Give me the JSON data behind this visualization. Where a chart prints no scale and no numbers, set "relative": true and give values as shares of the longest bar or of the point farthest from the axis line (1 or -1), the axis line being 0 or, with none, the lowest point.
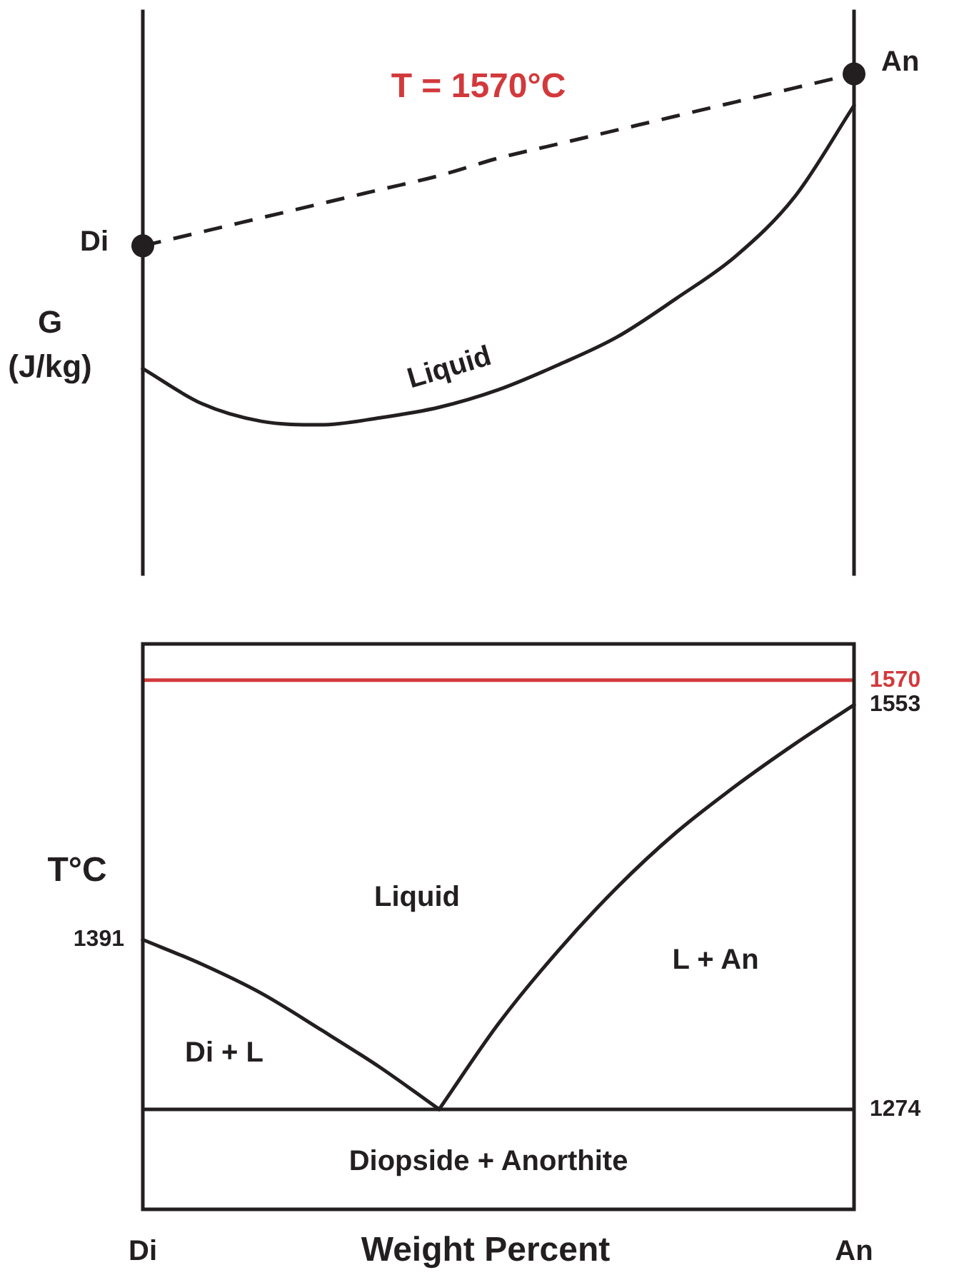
{
  "chart_data": [
    {
      "type": "line",
      "title": "T = 1570°C",
      "ylabel": "G (J/kg)",
      "relative": true,
      "tick_labels": false,
      "categories": [
        "Di",
        null,
        null,
        null,
        null,
        null,
        null,
        null,
        null,
        null,
        null,
        null,
        "An"
      ],
      "series": [
        {
          "name": "Liquid",
          "color": "#231f20",
          "values": [
            0.16,
            0.06,
            0.01,
            0,
            0.02,
            0.05,
            0.1,
            0.17,
            0.25,
            0.36,
            0.48,
            0.65,
            0.91
          ]
        },
        {
          "color": "#231f20",
          "line_style": "dashed",
          "values": [
            0.51,
            0.55,
            0.59,
            0.63,
            0.67,
            0.71,
            0.76,
            0.8,
            0.84,
            0.88,
            0.92,
            0.96,
            1
          ]
        },
        {
          "type": "scatter",
          "color": "#231f20",
          "marker": "circle",
          "values": [
            0.51,
            null,
            null,
            null,
            null,
            null,
            null,
            null,
            null,
            null,
            null,
            null,
            1
          ]
        }
      ],
      "annotations": [
        "Di",
        "An"
      ]
    },
    {
      "type": "line",
      "xlabel": "Weight Percent",
      "ylabel": "T°C",
      "categories": [
        "Di",
        null,
        null,
        null,
        null,
        null,
        null,
        null,
        null,
        null,
        null,
        null,
        "An"
      ],
      "ylim": [
        1205,
        1595
      ],
      "yticks": [
        1274,
        1553
      ],
      "series": [
        {
          "color": "#231f20",
          "values": [
            1391,
            1374,
            1354,
            1329,
            1303,
            1274,
            null,
            null,
            null,
            null,
            null,
            null,
            null
          ]
        },
        {
          "color": "#231f20",
          "values": [
            null,
            null,
            null,
            null,
            null,
            1274,
            1333,
            1383,
            1427,
            1465,
            1497,
            1526,
            1553
          ]
        }
      ],
      "ref_lines": [
        {
          "axis": "y",
          "value": 1570,
          "label": "1570",
          "color": "#d2393c"
        },
        {
          "axis": "y",
          "value": 1274,
          "color": "#231f20"
        }
      ],
      "annotations": [
        {
          "text": "1391",
          "x": "Di",
          "y": 1391
        },
        "Liquid",
        "Di + L",
        "L + An",
        "Diopside + Anorthite"
      ]
    }
  ]
}
